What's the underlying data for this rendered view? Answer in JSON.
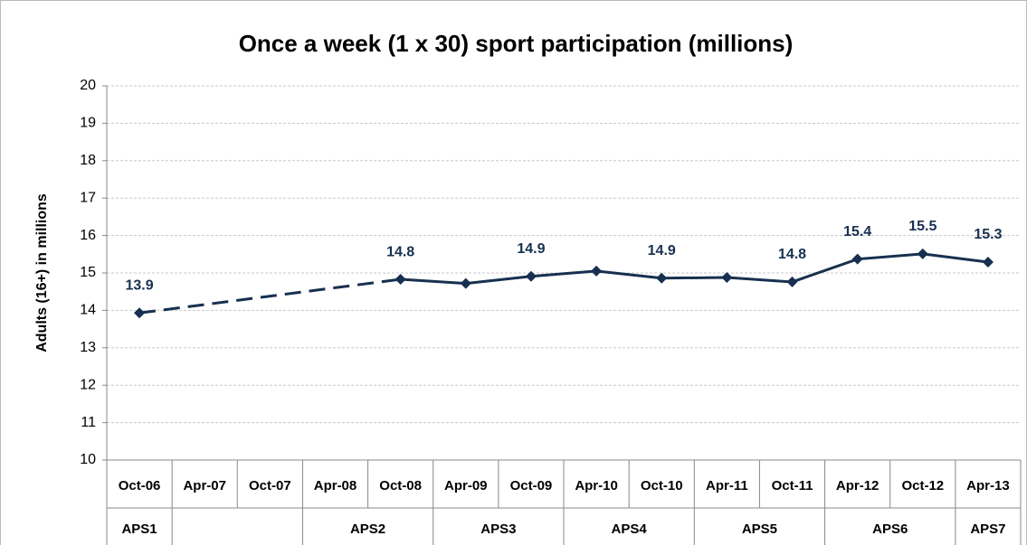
{
  "chart_data": {
    "type": "line",
    "title": "Once a week (1 x 30) sport participation (millions)",
    "y_label": "Adults (16+) in millions",
    "categories": [
      "Oct-06",
      "Apr-07",
      "Oct-07",
      "Apr-08",
      "Oct-08",
      "Apr-09",
      "Oct-09",
      "Apr-10",
      "Oct-10",
      "Apr-11",
      "Oct-11",
      "Apr-12",
      "Oct-12",
      "Apr-13"
    ],
    "group_labels": [
      "APS1",
      null,
      null,
      "APS2",
      "APS2",
      "APS3",
      "APS3",
      "APS4",
      "APS4",
      "APS5",
      "APS5",
      "APS6",
      "APS6",
      "APS7"
    ],
    "values": [
      13.93,
      null,
      null,
      null,
      14.83,
      14.72,
      14.91,
      15.05,
      14.86,
      14.88,
      14.76,
      15.37,
      15.51,
      15.29
    ],
    "value_labels": [
      "13.9",
      null,
      null,
      null,
      "14.8",
      null,
      "14.9",
      null,
      "14.9",
      null,
      "14.8",
      "15.4",
      "15.5",
      "15.3"
    ],
    "color": "#17304f",
    "gap_style": "dashed",
    "ylim": [
      10,
      20
    ],
    "yticks": [
      10,
      11,
      12,
      13,
      14,
      15,
      16,
      17,
      18,
      19,
      20
    ],
    "grid": true
  }
}
